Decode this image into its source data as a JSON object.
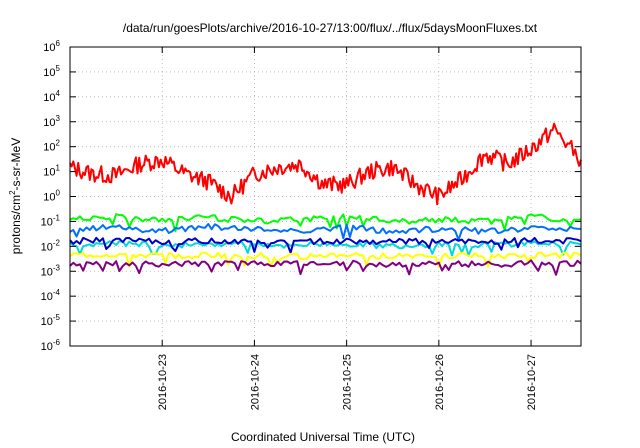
{
  "chart_data": {
    "type": "line",
    "title": "/data/run/goesPlots/archive/2016-10-27/13:00/flux/../flux/5daysMoonFluxes.txt",
    "xlabel": "Coordinated Universal Time (UTC)",
    "ylabel": {
      "pre": "protons/cm",
      "sup": "2",
      "post": "-s-sr-MeV"
    },
    "xlim": [
      "2016-10-22T00:00",
      "2016-10-27T13:00"
    ],
    "ylim": [
      1e-06,
      1000000.0
    ],
    "yscale": "log",
    "grid": true,
    "legend": "none",
    "x_ticks": [
      "2016-10-23",
      "2016-10-24",
      "2016-10-25",
      "2016-10-26",
      "2016-10-27"
    ],
    "y_ticks": [
      {
        "base": "10",
        "exp": "-6"
      },
      {
        "base": "10",
        "exp": "-5"
      },
      {
        "base": "10",
        "exp": "-4"
      },
      {
        "base": "10",
        "exp": "-3"
      },
      {
        "base": "10",
        "exp": "-2"
      },
      {
        "base": "10",
        "exp": "-1"
      },
      {
        "base": "10",
        "exp": "0"
      },
      {
        "base": "10",
        "exp": "1"
      },
      {
        "base": "10",
        "exp": "2"
      },
      {
        "base": "10",
        "exp": "3"
      },
      {
        "base": "10",
        "exp": "4"
      },
      {
        "base": "10",
        "exp": "5"
      },
      {
        "base": "10",
        "exp": "6"
      }
    ],
    "series": [
      {
        "color": "#ff0000",
        "width": 2,
        "x": [
          "2016-10-22T00:00",
          "2016-10-22T06:00",
          "2016-10-22T12:00",
          "2016-10-22T18:00",
          "2016-10-23T00:00",
          "2016-10-23T06:00",
          "2016-10-23T12:00",
          "2016-10-23T18:00",
          "2016-10-24T00:00",
          "2016-10-24T06:00",
          "2016-10-24T12:00",
          "2016-10-24T18:00",
          "2016-10-25T00:00",
          "2016-10-25T06:00",
          "2016-10-25T12:00",
          "2016-10-25T18:00",
          "2016-10-26T00:00",
          "2016-10-26T06:00",
          "2016-10-26T12:00",
          "2016-10-26T18:00",
          "2016-10-27T00:00",
          "2016-10-27T06:00",
          "2016-10-27T13:00"
        ],
        "y": [
          15,
          8,
          7,
          20,
          30,
          8,
          4,
          1,
          8,
          15,
          20,
          3,
          3,
          10,
          15,
          3,
          1,
          5,
          50,
          20,
          80,
          500,
          30
        ]
      },
      {
        "color": "#00ff00",
        "width": 2,
        "x": [
          "2016-10-22T00:00",
          "2016-10-22T12:00",
          "2016-10-23T00:00",
          "2016-10-23T12:00",
          "2016-10-24T00:00",
          "2016-10-24T12:00",
          "2016-10-25T00:00",
          "2016-10-25T12:00",
          "2016-10-26T00:00",
          "2016-10-26T12:00",
          "2016-10-27T00:00",
          "2016-10-27T13:00"
        ],
        "y": [
          0.12,
          0.15,
          0.1,
          0.15,
          0.1,
          0.12,
          0.15,
          0.1,
          0.12,
          0.1,
          0.15,
          0.12
        ]
      },
      {
        "color": "#0070ff",
        "width": 2,
        "x": [
          "2016-10-22T00:00",
          "2016-10-22T12:00",
          "2016-10-23T00:00",
          "2016-10-23T12:00",
          "2016-10-24T00:00",
          "2016-10-24T12:00",
          "2016-10-25T00:00",
          "2016-10-25T12:00",
          "2016-10-26T00:00",
          "2016-10-26T12:00",
          "2016-10-27T00:00",
          "2016-10-27T13:00"
        ],
        "y": [
          0.045,
          0.06,
          0.04,
          0.06,
          0.05,
          0.045,
          0.06,
          0.04,
          0.05,
          0.04,
          0.055,
          0.05
        ]
      },
      {
        "color": "#00d8d8",
        "width": 2,
        "x": [
          "2016-10-22T00:00",
          "2016-10-22T12:00",
          "2016-10-23T00:00",
          "2016-10-23T12:00",
          "2016-10-24T00:00",
          "2016-10-24T12:00",
          "2016-10-25T00:00",
          "2016-10-25T12:00",
          "2016-10-26T00:00",
          "2016-10-26T12:00",
          "2016-10-27T00:00",
          "2016-10-27T13:00"
        ],
        "y": [
          0.012,
          0.014,
          0.011,
          0.013,
          0.012,
          0.011,
          0.013,
          0.01,
          0.012,
          0.011,
          0.013,
          0.012
        ]
      },
      {
        "color": "#0000c8",
        "width": 2,
        "x": [
          "2016-10-22T00:00",
          "2016-10-22T12:00",
          "2016-10-23T00:00",
          "2016-10-23T12:00",
          "2016-10-24T00:00",
          "2016-10-24T12:00",
          "2016-10-25T00:00",
          "2016-10-25T12:00",
          "2016-10-26T00:00",
          "2016-10-26T12:00",
          "2016-10-27T00:00",
          "2016-10-27T13:00"
        ],
        "y": [
          0.016,
          0.018,
          0.015,
          0.017,
          0.016,
          0.015,
          0.017,
          0.015,
          0.016,
          0.015,
          0.017,
          0.016
        ]
      },
      {
        "color": "#ffff00",
        "width": 2,
        "x": [
          "2016-10-22T00:00",
          "2016-10-22T12:00",
          "2016-10-23T00:00",
          "2016-10-23T12:00",
          "2016-10-24T00:00",
          "2016-10-24T12:00",
          "2016-10-25T00:00",
          "2016-10-25T12:00",
          "2016-10-26T00:00",
          "2016-10-26T12:00",
          "2016-10-27T00:00",
          "2016-10-27T13:00"
        ],
        "y": [
          0.0042,
          0.0045,
          0.004,
          0.0044,
          0.0042,
          0.004,
          0.0044,
          0.0041,
          0.0043,
          0.0041,
          0.0044,
          0.0042
        ]
      },
      {
        "color": "#800080",
        "width": 2,
        "x": [
          "2016-10-22T00:00",
          "2016-10-22T12:00",
          "2016-10-23T00:00",
          "2016-10-23T12:00",
          "2016-10-24T00:00",
          "2016-10-24T12:00",
          "2016-10-25T00:00",
          "2016-10-25T12:00",
          "2016-10-26T00:00",
          "2016-10-26T12:00",
          "2016-10-27T00:00",
          "2016-10-27T13:00"
        ],
        "y": [
          0.002,
          0.0021,
          0.0019,
          0.0021,
          0.002,
          0.0019,
          0.0021,
          0.0019,
          0.002,
          0.0019,
          0.0021,
          0.002
        ]
      }
    ]
  }
}
